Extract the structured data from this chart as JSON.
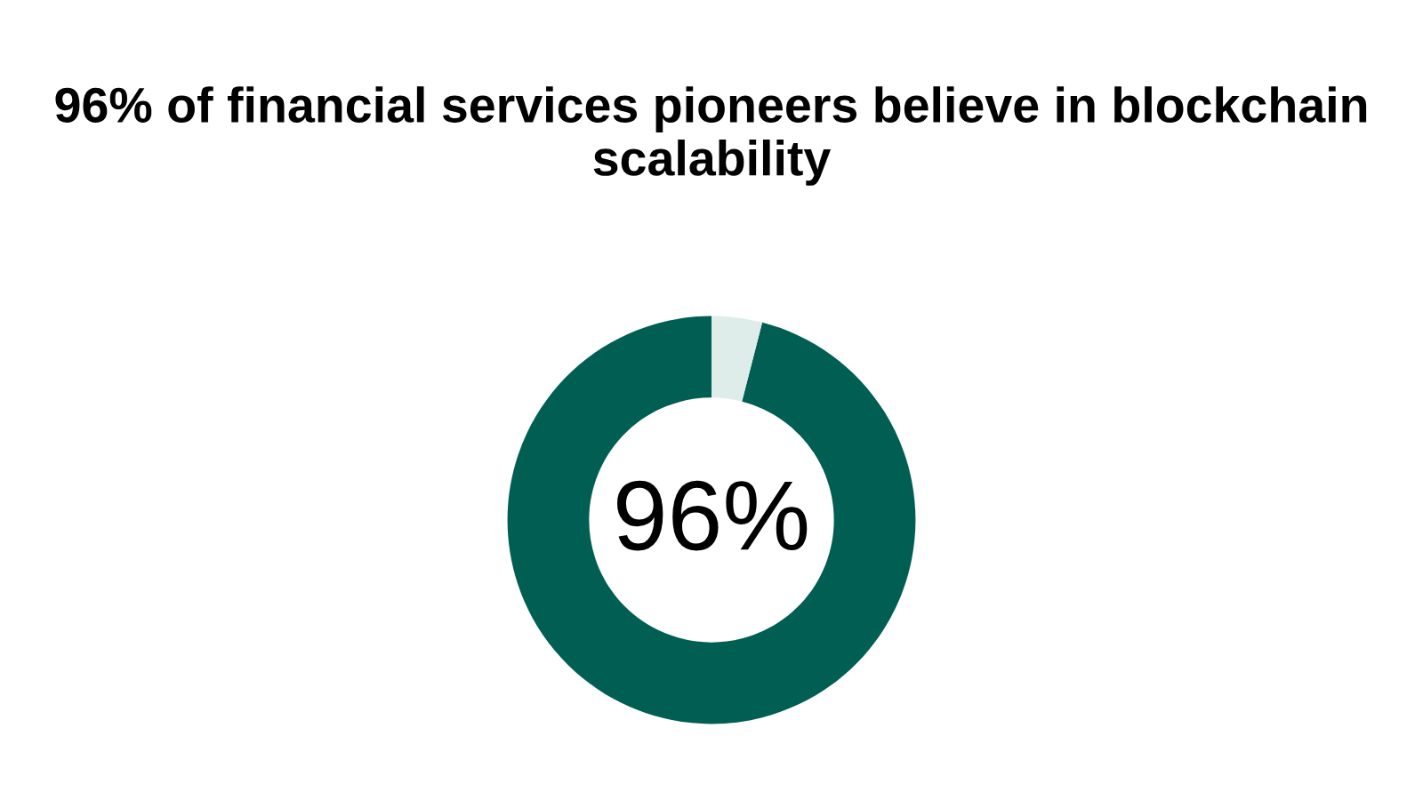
{
  "chart_data": {
    "type": "donut",
    "title": "96% of financial services pioneers believe in blockchain scalability",
    "categories": [
      null,
      null
    ],
    "values": [
      96,
      4
    ],
    "colors": [
      "#005f52",
      "#deecea"
    ],
    "annotations": [
      "96%"
    ]
  }
}
